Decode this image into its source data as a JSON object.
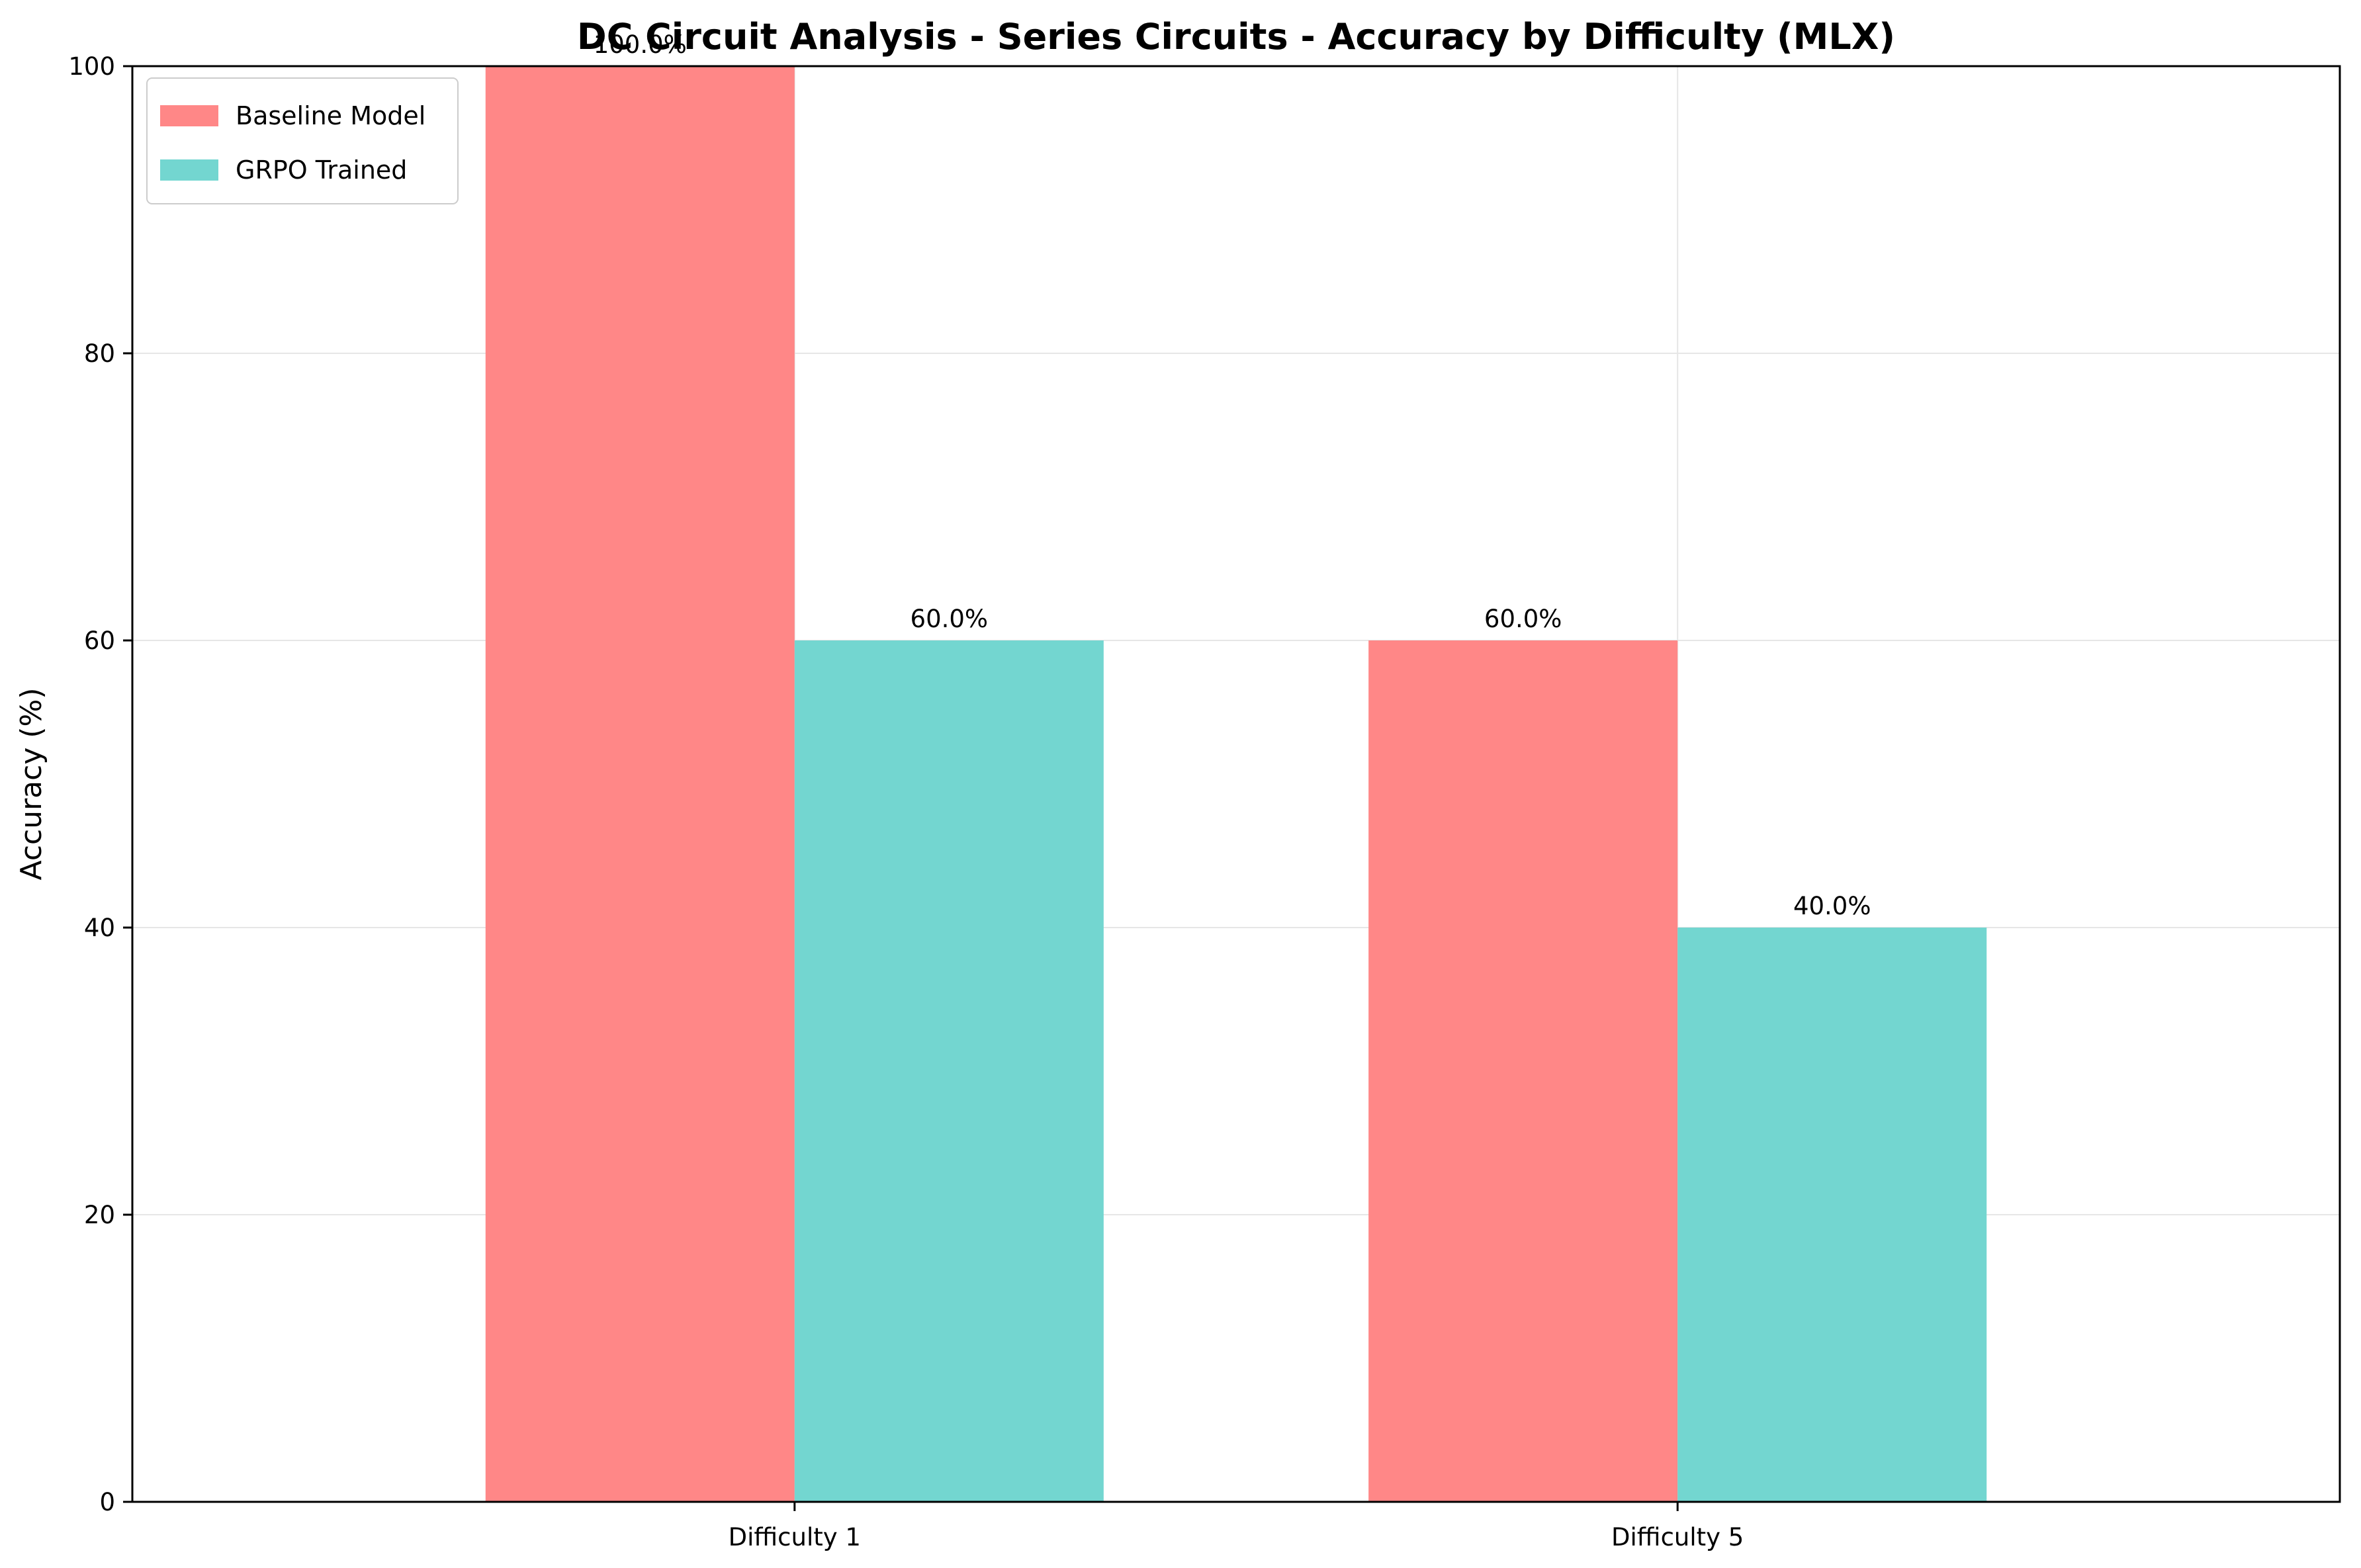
{
  "chart_data": {
    "type": "bar",
    "title": "DC Circuit Analysis - Series Circuits - Accuracy by Difficulty (MLX)",
    "xlabel": "",
    "ylabel": "Accuracy (%)",
    "categories": [
      "Difficulty 1",
      "Difficulty 5"
    ],
    "series": [
      {
        "name": "Baseline Model",
        "values": [
          100.0,
          60.0
        ],
        "color": "#ff8787",
        "labels": [
          "100.0%",
          "60.0%"
        ]
      },
      {
        "name": "GRPO Trained",
        "values": [
          60.0,
          40.0
        ],
        "color": "#73d6d0",
        "labels": [
          "60.0%",
          "40.0%"
        ]
      }
    ],
    "ylim": [
      0,
      100
    ],
    "yticks": [
      0,
      20,
      40,
      60,
      80,
      100
    ],
    "grid": true,
    "legend_position": "top-left"
  }
}
